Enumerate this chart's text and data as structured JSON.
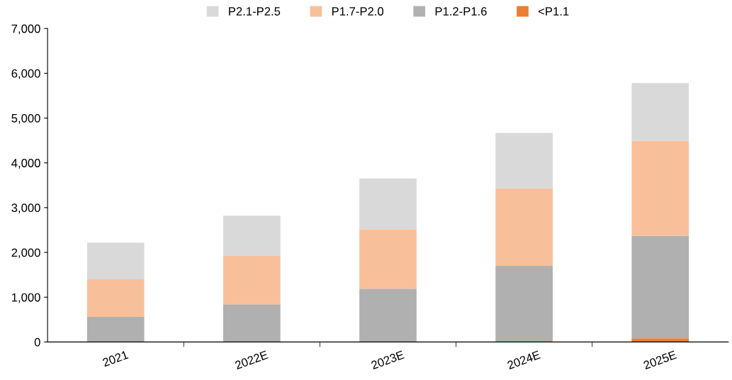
{
  "chart_data": {
    "type": "bar",
    "stacked": true,
    "categories": [
      "2021",
      "2022E",
      "2023E",
      "2024E",
      "2025E"
    ],
    "series": [
      {
        "name": "<P1.1",
        "color": "#ed7d31",
        "values": [
          0,
          0,
          0,
          20,
          80
        ]
      },
      {
        "name": "P1.2-P1.6",
        "color": "#b0b0b0",
        "values": [
          560,
          840,
          1190,
          1680,
          2290
        ]
      },
      {
        "name": "P1.7-P2.0",
        "color": "#f8c09a",
        "values": [
          840,
          1080,
          1330,
          1730,
          2120
        ]
      },
      {
        "name": "P2.1-P2.5",
        "color": "#d9d9d9",
        "values": [
          820,
          900,
          1130,
          1240,
          1290
        ]
      }
    ],
    "ylim": [
      0,
      7000
    ],
    "yticks": [
      {
        "value": 0,
        "label": "0"
      },
      {
        "value": 1000,
        "label": "1,000"
      },
      {
        "value": 2000,
        "label": "2,000"
      },
      {
        "value": 3000,
        "label": "3,000"
      },
      {
        "value": 4000,
        "label": "4,000"
      },
      {
        "value": 5000,
        "label": "5,000"
      },
      {
        "value": 6000,
        "label": "6,000"
      },
      {
        "value": 7000,
        "label": "7,000"
      }
    ],
    "grid": false,
    "legend": "top"
  }
}
